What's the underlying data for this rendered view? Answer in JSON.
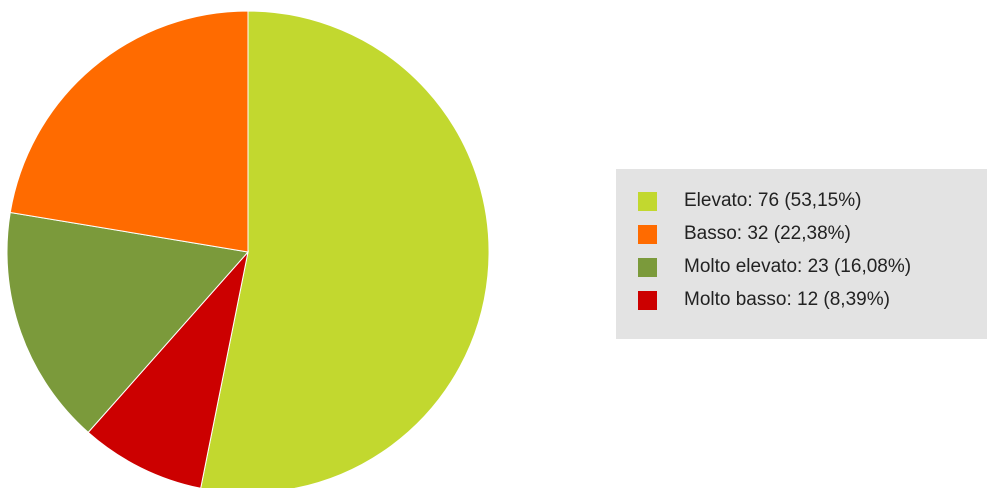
{
  "chart_data": {
    "type": "pie",
    "title": "",
    "legend_position": "right",
    "slices": [
      {
        "label": "Elevato: 76 (53,15%)",
        "value": 76,
        "percent": 53.15,
        "color": "#c2d82f"
      },
      {
        "label": "Molto basso: 12 (8,39%)",
        "value": 12,
        "percent": 8.39,
        "color": "#cc0000"
      },
      {
        "label": "Molto elevato: 23 (16,08%)",
        "value": 23,
        "percent": 16.08,
        "color": "#7b9a3b"
      },
      {
        "label": "Basso: 32 (22,38%)",
        "value": 32,
        "percent": 22.38,
        "color": "#ff6b00"
      }
    ],
    "legend": [
      {
        "label": "Elevato: 76 (53,15%)",
        "color": "#c2d82f"
      },
      {
        "label": "Basso: 32 (22,38%)",
        "color": "#ff6b00"
      },
      {
        "label": "Molto elevato: 23 (16,08%)",
        "color": "#7b9a3b"
      },
      {
        "label": "Molto basso: 12 (8,39%)",
        "color": "#cc0000"
      }
    ]
  }
}
